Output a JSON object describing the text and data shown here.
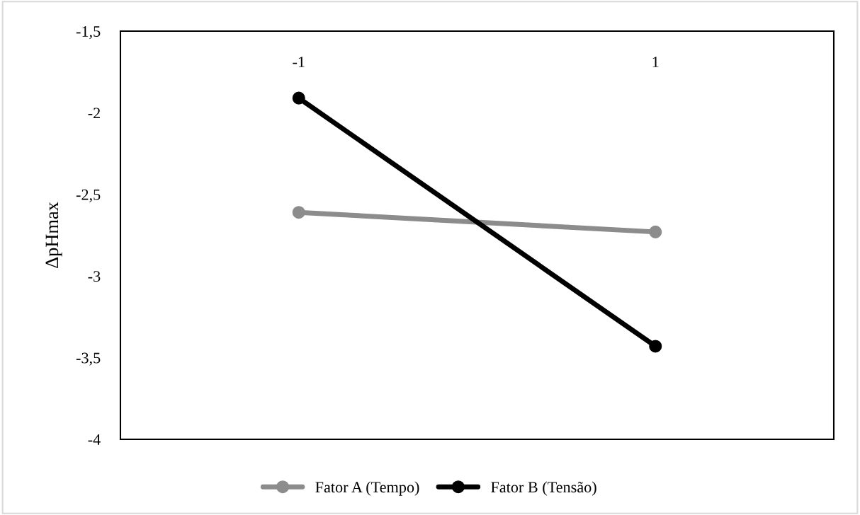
{
  "chart_data": {
    "type": "line",
    "ylabel": "ΔpHmax",
    "categories": [
      "-1",
      "1"
    ],
    "series": [
      {
        "name": "Fator A (Tempo)",
        "color": "#8c8c8c",
        "values": [
          -2.61,
          -2.73
        ]
      },
      {
        "name": "Fator B (Tensão)",
        "color": "#000000",
        "values": [
          -1.91,
          -3.43
        ]
      }
    ],
    "ylim": [
      -4,
      -1.5
    ],
    "yticks": [
      {
        "value": -4,
        "label": "-4"
      },
      {
        "value": -3.5,
        "label": "-3,5"
      },
      {
        "value": -3,
        "label": "-3"
      },
      {
        "value": -2.5,
        "label": "-2,5"
      },
      {
        "value": -2,
        "label": "-2"
      },
      {
        "value": -1.5,
        "label": "-1,5"
      }
    ],
    "grid": false,
    "legend": "bottom",
    "marker": "circle",
    "line_style": "solid"
  }
}
